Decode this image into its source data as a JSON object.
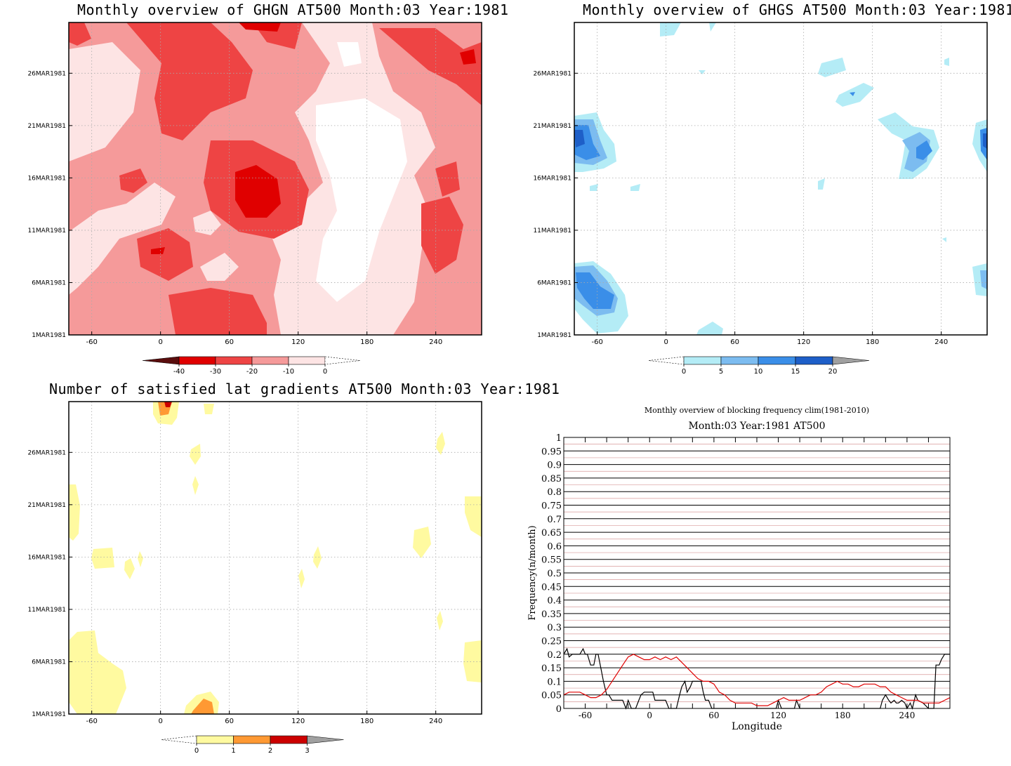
{
  "chart_data": [
    {
      "type": "heatmap",
      "title": "Monthly overview of GHGN AT500 Month:03 Year:1981",
      "xticks": [
        "-60",
        "0",
        "60",
        "120",
        "180",
        "240"
      ],
      "yticks": [
        "1MAR1981",
        "6MAR1981",
        "11MAR1981",
        "16MAR1981",
        "21MAR1981",
        "26MAR1981"
      ],
      "xlim": [
        -80,
        280
      ],
      "colorbar": {
        "labels": [
          "-40",
          "-30",
          "-20",
          "-10",
          "0"
        ],
        "colors": [
          "#5a0d0d",
          "#e00000",
          "#ee4444",
          "#f59a9a",
          "#fde4e4",
          "#ffffff"
        ]
      },
      "grid": true
    },
    {
      "type": "heatmap",
      "title": "Monthly overview of GHGS AT500 Month:03 Year:1981",
      "xticks": [
        "-60",
        "0",
        "60",
        "120",
        "180",
        "240"
      ],
      "yticks": [
        "1MAR1981",
        "6MAR1981",
        "11MAR1981",
        "16MAR1981",
        "21MAR1981",
        "26MAR1981"
      ],
      "xlim": [
        -80,
        280
      ],
      "colorbar": {
        "labels": [
          "0",
          "5",
          "10",
          "15",
          "20"
        ],
        "colors": [
          "#ffffff",
          "#b4ecf6",
          "#7cbcf0",
          "#3a8ee8",
          "#1e5fc8",
          "#a0a0a0"
        ]
      },
      "grid": true
    },
    {
      "type": "heatmap",
      "title": "Number of satisfied lat gradients AT500 Month:03 Year:1981",
      "xticks": [
        "-60",
        "0",
        "60",
        "120",
        "180",
        "240"
      ],
      "yticks": [
        "1MAR1981",
        "6MAR1981",
        "11MAR1981",
        "16MAR1981",
        "21MAR1981",
        "26MAR1981"
      ],
      "xlim": [
        -80,
        280
      ],
      "colorbar": {
        "labels": [
          "0",
          "1",
          "2",
          "3"
        ],
        "colors": [
          "#ffffff",
          "#fffaa0",
          "#ff9933",
          "#cc0000",
          "#a0a0a0"
        ]
      },
      "grid": true
    },
    {
      "type": "line",
      "title": "Monthly overview of blocking frequency clim(1981-2010)",
      "subtitle": "Month:03 Year:1981  AT500",
      "xlabel": "Longitude",
      "ylabel": "Frequency(n/month)",
      "xlim": [
        -80,
        280
      ],
      "ylim": [
        0,
        1
      ],
      "xticks": [
        "-60",
        "0",
        "60",
        "120",
        "180",
        "240"
      ],
      "yticks": [
        "0",
        "0.05",
        "0.1",
        "0.15",
        "0.2",
        "0.25",
        "0.3",
        "0.35",
        "0.4",
        "0.45",
        "0.5",
        "0.55",
        "0.6",
        "0.65",
        "0.7",
        "0.75",
        "0.8",
        "0.85",
        "0.9",
        "0.95",
        "1"
      ],
      "series": [
        {
          "color": "#000000",
          "x": [
            -80,
            -77,
            -75,
            -72,
            -70,
            -65,
            -62,
            -60,
            -58,
            -55,
            -52,
            -50,
            -48,
            -45,
            -43,
            -40,
            -38,
            -35,
            -33,
            -30,
            -28,
            -25,
            -22,
            -20,
            -17,
            -15,
            -13,
            -10,
            -8,
            -5,
            -3,
            0,
            3,
            5,
            8,
            10,
            13,
            15,
            18,
            20,
            23,
            25,
            28,
            30,
            33,
            35,
            38,
            40,
            43,
            45,
            48,
            50,
            52,
            55,
            58,
            60,
            63,
            65,
            70,
            75,
            80,
            85,
            90,
            95,
            100,
            105,
            110,
            112,
            115,
            118,
            120,
            123,
            125,
            127,
            130,
            133,
            135,
            137,
            140,
            143,
            145,
            150,
            160,
            170,
            180,
            190,
            200,
            210,
            215,
            217,
            220,
            223,
            225,
            228,
            230,
            232,
            235,
            238,
            240,
            243,
            245,
            248,
            250,
            255,
            260,
            262,
            265,
            267,
            270,
            272,
            275,
            277,
            280
          ],
          "y": [
            0.2,
            0.22,
            0.19,
            0.2,
            0.2,
            0.2,
            0.22,
            0.2,
            0.2,
            0.16,
            0.16,
            0.2,
            0.2,
            0.14,
            0.1,
            0.05,
            0.05,
            0.03,
            0.03,
            0.03,
            0.03,
            0.03,
            0.0,
            0.03,
            0.0,
            0.0,
            0.0,
            0.03,
            0.05,
            0.06,
            0.06,
            0.06,
            0.06,
            0.03,
            0.03,
            0.03,
            0.03,
            0.03,
            0.0,
            0.0,
            0.0,
            0.0,
            0.05,
            0.08,
            0.1,
            0.06,
            0.08,
            0.1,
            0.1,
            0.1,
            0.1,
            0.06,
            0.03,
            0.03,
            0.0,
            0.0,
            0.0,
            0.0,
            0.0,
            0.0,
            0.0,
            0.0,
            0.0,
            0.0,
            0.0,
            0.0,
            0.0,
            0.0,
            0.0,
            0.0,
            0.03,
            0.0,
            0.0,
            0.0,
            0.0,
            0.0,
            0.0,
            0.03,
            0.0,
            0.0,
            0.0,
            0.0,
            0.0,
            0.0,
            0.0,
            0.0,
            0.0,
            0.0,
            0.0,
            0.03,
            0.05,
            0.03,
            0.02,
            0.03,
            0.02,
            0.02,
            0.03,
            0.02,
            0.0,
            0.02,
            0.0,
            0.05,
            0.03,
            0.02,
            0.0,
            0.0,
            0.0,
            0.16,
            0.16,
            0.18,
            0.2,
            0.2,
            0.2
          ]
        },
        {
          "color": "#e00000",
          "x": [
            -80,
            -75,
            -70,
            -65,
            -60,
            -55,
            -50,
            -45,
            -40,
            -35,
            -30,
            -25,
            -20,
            -15,
            -10,
            -5,
            0,
            5,
            10,
            15,
            20,
            25,
            30,
            35,
            40,
            45,
            50,
            55,
            60,
            65,
            70,
            75,
            80,
            85,
            90,
            95,
            100,
            105,
            110,
            115,
            120,
            125,
            130,
            135,
            140,
            145,
            150,
            155,
            160,
            165,
            170,
            175,
            180,
            185,
            190,
            195,
            200,
            205,
            210,
            215,
            220,
            225,
            230,
            235,
            240,
            245,
            250,
            255,
            260,
            265,
            270,
            275,
            280
          ],
          "y": [
            0.05,
            0.06,
            0.06,
            0.06,
            0.05,
            0.04,
            0.04,
            0.05,
            0.07,
            0.1,
            0.13,
            0.16,
            0.19,
            0.2,
            0.19,
            0.18,
            0.18,
            0.19,
            0.18,
            0.19,
            0.18,
            0.19,
            0.17,
            0.15,
            0.13,
            0.11,
            0.1,
            0.1,
            0.09,
            0.06,
            0.05,
            0.03,
            0.02,
            0.02,
            0.02,
            0.02,
            0.01,
            0.01,
            0.01,
            0.02,
            0.03,
            0.04,
            0.03,
            0.03,
            0.03,
            0.04,
            0.05,
            0.05,
            0.06,
            0.08,
            0.09,
            0.1,
            0.09,
            0.09,
            0.08,
            0.08,
            0.09,
            0.09,
            0.09,
            0.08,
            0.08,
            0.06,
            0.05,
            0.04,
            0.03,
            0.03,
            0.03,
            0.02,
            0.02,
            0.02,
            0.02,
            0.03,
            0.04
          ]
        }
      ]
    }
  ]
}
